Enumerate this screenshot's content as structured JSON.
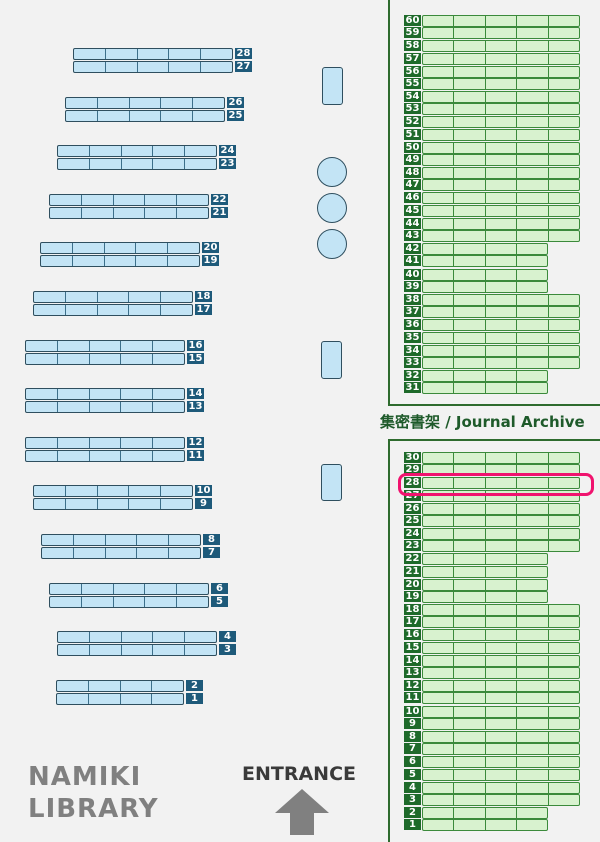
{
  "map": {
    "library_name_line1": "NAMIKI",
    "library_name_line2": "LIBRARY",
    "entrance_label": "ENTRANCE",
    "archive_label": "集密書架 / Journal Archive",
    "highlighted_shelf": {
      "section": "journal-archive",
      "number": "28"
    },
    "colors": {
      "open_shelf_fill": "#c3e4f5",
      "open_shelf_label": "#1e5a7a",
      "archive_shelf_fill": "#d8f2cf",
      "archive_shelf_label": "#1e6a2a",
      "highlight": "#f0136e",
      "background": "#f2f2f2"
    }
  },
  "left_shelves": [
    {
      "number": "28",
      "cells": 5
    },
    {
      "number": "27",
      "cells": 5
    },
    {
      "number": "26",
      "cells": 5
    },
    {
      "number": "25",
      "cells": 5
    },
    {
      "number": "24",
      "cells": 5
    },
    {
      "number": "23",
      "cells": 5
    },
    {
      "number": "22",
      "cells": 5
    },
    {
      "number": "21",
      "cells": 5
    },
    {
      "number": "20",
      "cells": 5
    },
    {
      "number": "19",
      "cells": 5
    },
    {
      "number": "18",
      "cells": 5
    },
    {
      "number": "17",
      "cells": 5
    },
    {
      "number": "16",
      "cells": 5
    },
    {
      "number": "15",
      "cells": 5
    },
    {
      "number": "14",
      "cells": 5
    },
    {
      "number": "13",
      "cells": 5
    },
    {
      "number": "12",
      "cells": 5
    },
    {
      "number": "11",
      "cells": 5
    },
    {
      "number": "10",
      "cells": 5
    },
    {
      "number": "9",
      "cells": 5
    },
    {
      "number": "8",
      "cells": 5
    },
    {
      "number": "7",
      "cells": 5
    },
    {
      "number": "6",
      "cells": 5
    },
    {
      "number": "5",
      "cells": 5
    },
    {
      "number": "4",
      "cells": 5
    },
    {
      "number": "3",
      "cells": 5
    },
    {
      "number": "2",
      "cells": 4
    },
    {
      "number": "1",
      "cells": 4
    }
  ],
  "archive_upper": [
    {
      "number": "60",
      "cells": 5
    },
    {
      "number": "59",
      "cells": 5
    },
    {
      "number": "58",
      "cells": 5
    },
    {
      "number": "57",
      "cells": 5
    },
    {
      "number": "56",
      "cells": 5
    },
    {
      "number": "55",
      "cells": 5
    },
    {
      "number": "54",
      "cells": 5
    },
    {
      "number": "53",
      "cells": 5
    },
    {
      "number": "52",
      "cells": 5
    },
    {
      "number": "51",
      "cells": 5
    },
    {
      "number": "50",
      "cells": 5
    },
    {
      "number": "49",
      "cells": 5
    },
    {
      "number": "48",
      "cells": 5
    },
    {
      "number": "47",
      "cells": 5
    },
    {
      "number": "46",
      "cells": 5
    },
    {
      "number": "45",
      "cells": 5
    },
    {
      "number": "44",
      "cells": 5
    },
    {
      "number": "43",
      "cells": 5
    },
    {
      "number": "42",
      "cells": 4
    },
    {
      "number": "41",
      "cells": 4
    },
    {
      "number": "40",
      "cells": 4
    },
    {
      "number": "39",
      "cells": 4
    },
    {
      "number": "38",
      "cells": 5
    },
    {
      "number": "37",
      "cells": 5
    },
    {
      "number": "36",
      "cells": 5
    },
    {
      "number": "35",
      "cells": 5
    },
    {
      "number": "34",
      "cells": 5
    },
    {
      "number": "33",
      "cells": 5
    },
    {
      "number": "32",
      "cells": 4
    },
    {
      "number": "31",
      "cells": 4
    }
  ],
  "archive_lower": [
    {
      "number": "30",
      "cells": 5
    },
    {
      "number": "29",
      "cells": 5
    },
    {
      "number": "28",
      "cells": 5
    },
    {
      "number": "27",
      "cells": 5
    },
    {
      "number": "26",
      "cells": 5
    },
    {
      "number": "25",
      "cells": 5
    },
    {
      "number": "24",
      "cells": 5
    },
    {
      "number": "23",
      "cells": 5
    },
    {
      "number": "22",
      "cells": 4
    },
    {
      "number": "21",
      "cells": 4
    },
    {
      "number": "20",
      "cells": 4
    },
    {
      "number": "19",
      "cells": 4
    },
    {
      "number": "18",
      "cells": 5
    },
    {
      "number": "17",
      "cells": 5
    },
    {
      "number": "16",
      "cells": 5
    },
    {
      "number": "15",
      "cells": 5
    },
    {
      "number": "14",
      "cells": 5
    },
    {
      "number": "13",
      "cells": 5
    },
    {
      "number": "12",
      "cells": 5
    },
    {
      "number": "11",
      "cells": 5
    },
    {
      "number": "10",
      "cells": 5
    },
    {
      "number": "9",
      "cells": 5
    },
    {
      "number": "8",
      "cells": 5
    },
    {
      "number": "7",
      "cells": 5
    },
    {
      "number": "6",
      "cells": 5
    },
    {
      "number": "5",
      "cells": 5
    },
    {
      "number": "4",
      "cells": 5
    },
    {
      "number": "3",
      "cells": 5
    },
    {
      "number": "2",
      "cells": 4
    },
    {
      "number": "1",
      "cells": 4
    }
  ]
}
